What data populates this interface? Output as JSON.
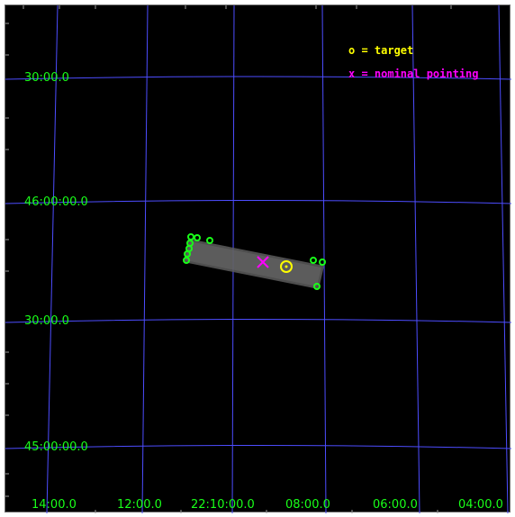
{
  "colors": {
    "background": "#000000",
    "grid": "#4d4dff",
    "coord_labels": "#19ff19",
    "target": "#ffff00",
    "nominal_pointing": "#ff00ff",
    "sources": "#19ff19",
    "image": "#5c5c5c"
  },
  "legend": {
    "target": "o = target",
    "nominal": "x = nominal pointing"
  },
  "dec_labels": [
    "30:00.0",
    "46:00:00.0",
    "30:00.0",
    "45:00:00.0"
  ],
  "ra_labels": [
    "14:00.0",
    "12:00.0",
    "22:10:00.0",
    "08:00.0",
    "06:00.0",
    "04:00.0"
  ],
  "markers": {
    "target_icon": "circle-marker",
    "nominal_icon": "x-marker",
    "source_icon": "small-circle"
  }
}
